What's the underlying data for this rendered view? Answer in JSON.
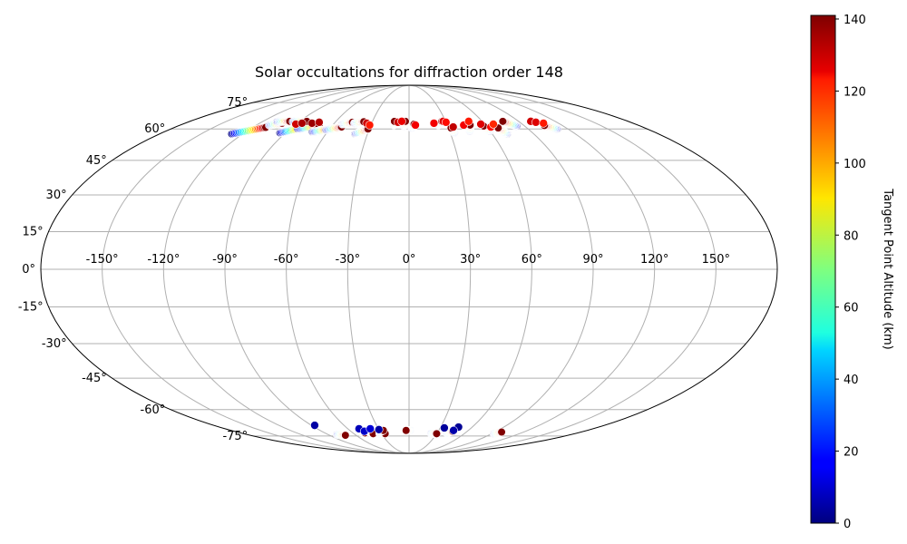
{
  "chart_data": {
    "type": "scatter",
    "projection": "mollweide",
    "title": "Solar occultations for diffraction order 148",
    "lon_ticks": [
      {
        "value": -150,
        "label": "-150°"
      },
      {
        "value": -120,
        "label": "-120°"
      },
      {
        "value": -90,
        "label": "-90°"
      },
      {
        "value": -60,
        "label": "-60°"
      },
      {
        "value": -30,
        "label": "-30°"
      },
      {
        "value": 0,
        "label": "0°"
      },
      {
        "value": 30,
        "label": "30°"
      },
      {
        "value": 60,
        "label": "60°"
      },
      {
        "value": 90,
        "label": "90°"
      },
      {
        "value": 120,
        "label": "120°"
      },
      {
        "value": 150,
        "label": "150°"
      }
    ],
    "lat_ticks": [
      {
        "value": 75,
        "label": "75°"
      },
      {
        "value": 60,
        "label": "60°"
      },
      {
        "value": 45,
        "label": "45°"
      },
      {
        "value": 30,
        "label": "30°"
      },
      {
        "value": 15,
        "label": "15°"
      },
      {
        "value": 0,
        "label": "0°"
      },
      {
        "value": -15,
        "label": "-15°"
      },
      {
        "value": -30,
        "label": "-30°"
      },
      {
        "value": -45,
        "label": "-45°"
      },
      {
        "value": -60,
        "label": "-60°"
      },
      {
        "value": -75,
        "label": "-75°"
      }
    ],
    "grid": true,
    "colorbar": {
      "label": "Tangent Point Altitude (km)",
      "colormap": "jet",
      "range": [
        0,
        141
      ],
      "ticks": [
        {
          "value": 0,
          "label": "0"
        },
        {
          "value": 20,
          "label": "20"
        },
        {
          "value": 40,
          "label": "40"
        },
        {
          "value": 60,
          "label": "60"
        },
        {
          "value": 80,
          "label": "80"
        },
        {
          "value": 100,
          "label": "100"
        },
        {
          "value": 120,
          "label": "120"
        },
        {
          "value": 140,
          "label": "140"
        }
      ]
    },
    "tracks": [
      {
        "lon0": -128,
        "lat0": 57.5,
        "lon1": -110,
        "lat1": 60.8
      },
      {
        "lon0": -110,
        "lat0": 62.0,
        "lon1": -102,
        "lat1": 63.0
      },
      {
        "lon0": -94,
        "lat0": 58.0,
        "lon1": -80,
        "lat1": 61.0
      },
      {
        "lon0": -84,
        "lat0": 60.0,
        "lon1": -70,
        "lat1": 61.5
      },
      {
        "lon0": -71,
        "lat0": 58.5,
        "lon1": -60,
        "lat1": 60.0
      },
      {
        "lon0": -62,
        "lat0": 59.5,
        "lon1": -52,
        "lat1": 61.0
      },
      {
        "lon0": -39,
        "lat0": 57.5,
        "lon1": -31,
        "lat1": 60.0
      },
      {
        "lon0": -108,
        "lat0": 63.8,
        "lon1": -98,
        "lat1": 64.0
      },
      {
        "lon0": -95,
        "lat0": 63.8,
        "lon1": -84,
        "lat1": 64.0
      },
      {
        "lon0": -53,
        "lat0": 62.5,
        "lon1": -46,
        "lat1": 63.5
      },
      {
        "lon0": -44,
        "lat0": 63.0,
        "lon1": -37,
        "lat1": 63.8
      },
      {
        "lon0": -12,
        "lat0": 62.0,
        "lon1": -12,
        "lat1": 64.0
      },
      {
        "lon0": -4,
        "lat0": 61.5,
        "lon1": -3,
        "lat1": 64.0
      },
      {
        "lon0": 2,
        "lat0": 60.5,
        "lon1": 4,
        "lat1": 62.5
      },
      {
        "lon0": 23,
        "lat0": 62.0,
        "lon1": 27,
        "lat1": 64.0
      },
      {
        "lon0": 33,
        "lat0": 58.0,
        "lon1": 32,
        "lat1": 60.5
      },
      {
        "lon0": 45,
        "lat0": 59.0,
        "lon1": 48,
        "lat1": 62.0
      },
      {
        "lon0": 60,
        "lat0": 59.0,
        "lon1": 58,
        "lat1": 61.5
      },
      {
        "lon0": 71,
        "lat0": 57.5,
        "lon1": 68,
        "lat1": 60.5
      },
      {
        "lon0": 84,
        "lat0": 61.5,
        "lon1": 77,
        "lat1": 64.0
      },
      {
        "lon0": 112,
        "lat0": 60.0,
        "lon1": 106,
        "lat1": 61.8
      },
      {
        "lon0": -80,
        "lat0": -74.0,
        "lon1": -72,
        "lat1": -74.5
      },
      {
        "lon0": -52,
        "lat0": -72.0,
        "lon1": -47,
        "lat1": -73.0
      },
      {
        "lon0": -42,
        "lat0": -72.0,
        "lon1": -39,
        "lat1": -73.5
      },
      {
        "lon0": -32,
        "lat0": -73.5,
        "lon1": -26,
        "lat1": -73.5
      },
      {
        "lon0": -31,
        "lat0": -72.5,
        "lon1": -26,
        "lat1": -71.5
      },
      {
        "lon0": 1,
        "lat0": -71.5,
        "lon1": -3,
        "lat1": -71.5
      },
      {
        "lon0": 24,
        "lat0": -73.5,
        "lon1": 30,
        "lat1": -73.5
      },
      {
        "lon0": 40,
        "lat0": -73.0,
        "lon1": 45,
        "lat1": -72.0
      },
      {
        "lon0": 92,
        "lat0": -73.5,
        "lon1": 97,
        "lat1": -72.5
      }
    ],
    "points": [
      {
        "lon": -90,
        "lat": 62.5,
        "alt": 130
      },
      {
        "lon": -86,
        "lat": 63.0,
        "alt": 135
      },
      {
        "lon": -78,
        "lat": 63.0,
        "alt": 137
      },
      {
        "lon": -73,
        "lat": 63.5,
        "alt": 134
      },
      {
        "lon": -34,
        "lat": 63.0,
        "alt": 130
      },
      {
        "lon": -31,
        "lat": 62.0,
        "alt": 120
      },
      {
        "lon": -9,
        "lat": 63.5,
        "alt": 130
      },
      {
        "lon": -6,
        "lat": 64.0,
        "alt": 126
      },
      {
        "lon": 5,
        "lat": 62.0,
        "alt": 125
      },
      {
        "lon": 20,
        "lat": 63.0,
        "alt": 125
      },
      {
        "lon": 28,
        "lat": 64.0,
        "alt": 128
      },
      {
        "lon": 30,
        "lat": 63.5,
        "alt": 122
      },
      {
        "lon": 34,
        "lat": 61.0,
        "alt": 132
      },
      {
        "lon": 43,
        "lat": 62.0,
        "alt": 125
      },
      {
        "lon": 49,
        "lat": 64.0,
        "alt": 120
      },
      {
        "lon": 57,
        "lat": 62.5,
        "alt": 128
      },
      {
        "lon": 63,
        "lat": 61.0,
        "alt": 122
      },
      {
        "lon": 67,
        "lat": 62.5,
        "alt": 118
      },
      {
        "lon": 100,
        "lat": 64.0,
        "alt": 130
      },
      {
        "lon": 103,
        "lat": 63.5,
        "alt": 128
      },
      {
        "lon": 108,
        "lat": 63.0,
        "alt": 120
      },
      {
        "lon": -87,
        "lat": -68.5,
        "alt": 5
      },
      {
        "lon": -49,
        "lat": -70.5,
        "alt": 8
      },
      {
        "lon": -46,
        "lat": -72.0,
        "alt": 10
      },
      {
        "lon": -38,
        "lat": -70.5,
        "alt": 12
      },
      {
        "lon": -30,
        "lat": -71.0,
        "alt": 5
      },
      {
        "lon": 34,
        "lat": -70.0,
        "alt": 4
      },
      {
        "lon": 47,
        "lat": -69.5,
        "alt": 3
      },
      {
        "lon": 45,
        "lat": -71.5,
        "alt": 6
      }
    ]
  }
}
